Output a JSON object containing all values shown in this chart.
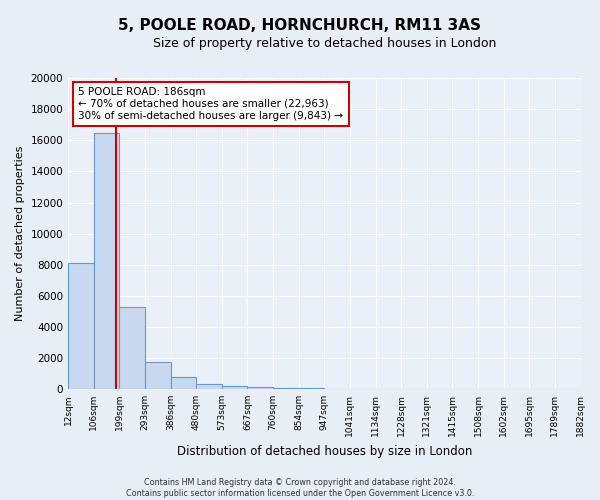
{
  "title": "5, POOLE ROAD, HORNCHURCH, RM11 3AS",
  "subtitle": "Size of property relative to detached houses in London",
  "xlabel": "Distribution of detached houses by size in London",
  "ylabel": "Number of detached properties",
  "bin_labels": [
    "12sqm",
    "106sqm",
    "199sqm",
    "293sqm",
    "386sqm",
    "480sqm",
    "573sqm",
    "667sqm",
    "760sqm",
    "854sqm",
    "947sqm",
    "1041sqm",
    "1134sqm",
    "1228sqm",
    "1321sqm",
    "1415sqm",
    "1508sqm",
    "1602sqm",
    "1695sqm",
    "1789sqm",
    "1882sqm"
  ],
  "bar_values": [
    8100,
    16500,
    5300,
    1750,
    780,
    310,
    200,
    120,
    90,
    100,
    0,
    0,
    0,
    0,
    0,
    0,
    0,
    0,
    0,
    0
  ],
  "bar_color": "#c9d9ed",
  "bar_edge_color": "#6699cc",
  "ylim": [
    0,
    20000
  ],
  "yticks": [
    0,
    2000,
    4000,
    6000,
    8000,
    10000,
    12000,
    14000,
    16000,
    18000,
    20000
  ],
  "annotation_title": "5 POOLE ROAD: 186sqm",
  "annotation_line1": "← 70% of detached houses are smaller (22,963)",
  "annotation_line2": "30% of semi-detached houses are larger (9,843) →",
  "annotation_box_color": "#ffffff",
  "annotation_box_edge": "#cc0000",
  "vline_color": "#cc0000",
  "footer1": "Contains HM Land Registry data © Crown copyright and database right 2024.",
  "footer2": "Contains public sector information licensed under the Open Government Licence v3.0.",
  "background_color": "#e8eef5",
  "plot_bg_color": "#eaf0f8"
}
